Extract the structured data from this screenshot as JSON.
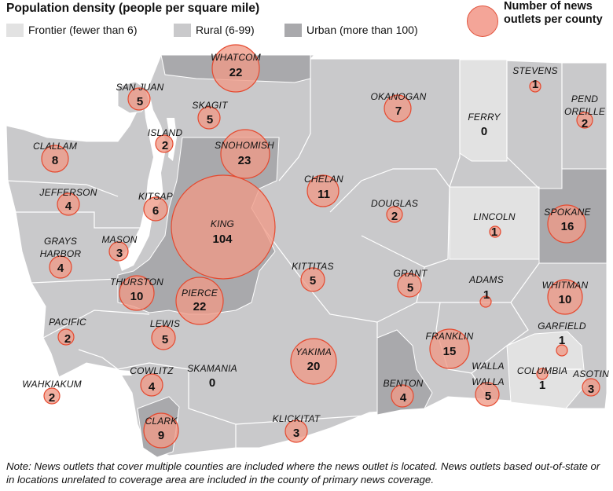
{
  "legend": {
    "title": "Population density (people per square mile)",
    "categories": [
      {
        "label": "Frontier (fewer than 6)",
        "color": "#e2e2e2"
      },
      {
        "label": "Rural (6-99)",
        "color": "#c9c9cb"
      },
      {
        "label": "Urban (more than 100)",
        "color": "#a9a9ac"
      }
    ],
    "bubble_title": "Number of news outlets per county",
    "bubble_color": "#f4a598",
    "bubble_stroke": "#e2553f"
  },
  "counties": [
    {
      "name": "WHATCOM",
      "count": "22"
    },
    {
      "name": "SAN JUAN",
      "count": "5"
    },
    {
      "name": "SKAGIT",
      "count": "5"
    },
    {
      "name": "ISLAND",
      "count": "2"
    },
    {
      "name": "CLALLAM",
      "count": "8"
    },
    {
      "name": "SNOHOMISH",
      "count": "23"
    },
    {
      "name": "OKANOGAN",
      "count": "7"
    },
    {
      "name": "FERRY",
      "count": "0"
    },
    {
      "name": "STEVENS",
      "count": "1"
    },
    {
      "name": "PEND OREILLE",
      "count": "2"
    },
    {
      "name": "JEFFERSON",
      "count": "4"
    },
    {
      "name": "KITSAP",
      "count": "6"
    },
    {
      "name": "KING",
      "count": "104"
    },
    {
      "name": "CHELAN",
      "count": "11"
    },
    {
      "name": "DOUGLAS",
      "count": "2"
    },
    {
      "name": "LINCOLN",
      "count": "1"
    },
    {
      "name": "SPOKANE",
      "count": "16"
    },
    {
      "name": "GRAYS HARBOR",
      "count": "4"
    },
    {
      "name": "MASON",
      "count": "3"
    },
    {
      "name": "THURSTON",
      "count": "10"
    },
    {
      "name": "PIERCE",
      "count": "22"
    },
    {
      "name": "KITTITAS",
      "count": "5"
    },
    {
      "name": "GRANT",
      "count": "5"
    },
    {
      "name": "ADAMS",
      "count": "1"
    },
    {
      "name": "WHITMAN",
      "count": "10"
    },
    {
      "name": "PACIFIC",
      "count": "2"
    },
    {
      "name": "LEWIS",
      "count": "5"
    },
    {
      "name": "YAKIMA",
      "count": "20"
    },
    {
      "name": "FRANKLIN",
      "count": "15"
    },
    {
      "name": "GARFIELD",
      "count": "1"
    },
    {
      "name": "WAHKIAKUM",
      "count": "2"
    },
    {
      "name": "COWLITZ",
      "count": "4"
    },
    {
      "name": "SKAMANIA",
      "count": "0"
    },
    {
      "name": "BENTON",
      "count": "4"
    },
    {
      "name": "WALLA WALLA",
      "count": "5"
    },
    {
      "name": "COLUMBIA",
      "count": "1"
    },
    {
      "name": "ASOTIN",
      "count": "3"
    },
    {
      "name": "CLARK",
      "count": "9"
    },
    {
      "name": "KLICKITAT",
      "count": "3"
    }
  ],
  "note": "Note: News outlets that cover multiple counties are included where the news outlet is located. News outlets based out-of-state or in locations unrelated to coverage area are included in the county of primary news coverage."
}
